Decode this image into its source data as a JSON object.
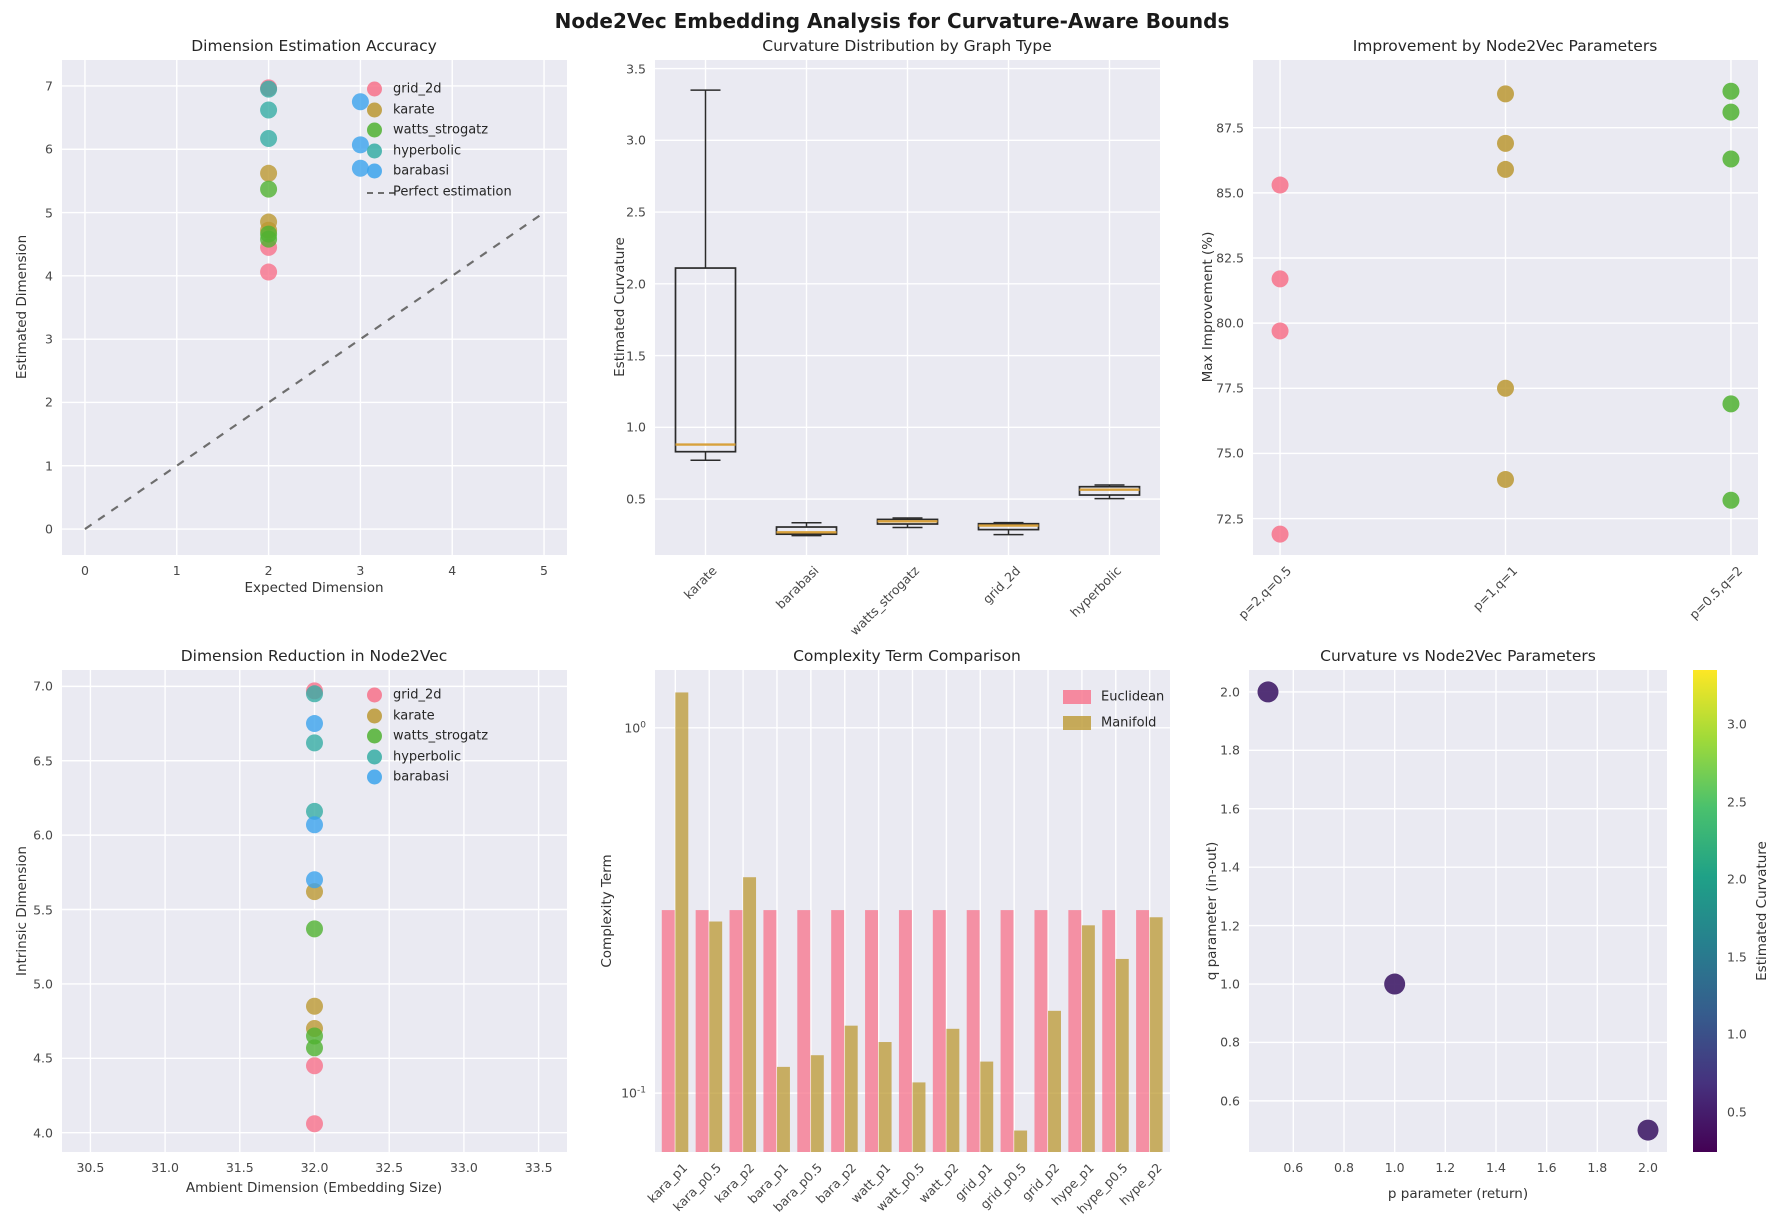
{
  "figure_title": "Node2Vec Embedding Analysis for Curvature-Aware Bounds",
  "palette": {
    "grid_2d": "#f77189",
    "karate": "#bb9832",
    "watts_strogatz": "#50b131",
    "hyperbolic": "#36ada4",
    "barabasi": "#3ba3ec",
    "euclidean": "#f77189",
    "manifold": "#bb9832",
    "median_line": "#d8a13c",
    "ref_line": "#6e6e6e",
    "box_edge": "#2b2b2b",
    "axes_bg": "#eaeaf2",
    "grid_line": "#ffffff",
    "dark_point": "#44226b"
  },
  "chart_data": [
    {
      "id": "dim-estimation-accuracy",
      "type": "scatter",
      "title": "Dimension Estimation Accuracy",
      "xlabel": "Expected Dimension",
      "ylabel": "Estimated Dimension",
      "xlim": [
        -0.25,
        5.25
      ],
      "ylim": [
        -0.41,
        7.41
      ],
      "xticks": [
        0,
        1,
        2,
        3,
        4,
        5
      ],
      "yticks": [
        0,
        1,
        2,
        3,
        4,
        5,
        6,
        7
      ],
      "xtick_decimals": 0,
      "ytick_decimals": 0,
      "series": [
        {
          "name": "grid_2d",
          "color_key": "grid_2d",
          "points": [
            [
              2,
              6.97
            ],
            [
              2,
              4.45
            ],
            [
              2,
              4.06
            ]
          ]
        },
        {
          "name": "karate",
          "color_key": "karate",
          "points": [
            [
              2,
              5.62
            ],
            [
              2,
              4.85
            ],
            [
              2,
              4.72
            ]
          ]
        },
        {
          "name": "watts_strogatz",
          "color_key": "watts_strogatz",
          "points": [
            [
              2,
              5.37
            ],
            [
              2,
              4.66
            ],
            [
              2,
              4.58
            ]
          ]
        },
        {
          "name": "hyperbolic",
          "color_key": "hyperbolic",
          "points": [
            [
              2,
              6.95
            ],
            [
              2,
              6.62
            ],
            [
              2,
              6.17
            ]
          ]
        },
        {
          "name": "barabasi",
          "color_key": "barabasi",
          "points": [
            [
              3,
              6.75
            ],
            [
              3,
              6.07
            ],
            [
              3,
              5.7
            ]
          ]
        }
      ],
      "ref_line": {
        "label": "Perfect estimation",
        "x1": 0,
        "y1": 0,
        "x2": 5,
        "y2": 5
      },
      "legend": true
    },
    {
      "id": "curvature-distribution",
      "type": "box",
      "title": "Curvature Distribution by Graph Type",
      "xlabel": "",
      "ylabel": "Estimated Curvature",
      "ylim": [
        0.11,
        3.56
      ],
      "yticks": [
        0.5,
        1.0,
        1.5,
        2.0,
        2.5,
        3.0,
        3.5
      ],
      "ytick_decimals": 1,
      "categories": [
        "karate",
        "barabasi",
        "watts_strogatz",
        "grid_2d",
        "hyperbolic"
      ],
      "boxes": [
        {
          "label": "karate",
          "whislo": 0.77,
          "q1": 0.83,
          "med": 0.88,
          "q3": 2.11,
          "whishi": 3.35
        },
        {
          "label": "barabasi",
          "whislo": 0.245,
          "q1": 0.255,
          "med": 0.268,
          "q3": 0.305,
          "whishi": 0.335
        },
        {
          "label": "watts_strogatz",
          "whislo": 0.302,
          "q1": 0.326,
          "med": 0.345,
          "q3": 0.358,
          "whishi": 0.368
        },
        {
          "label": "grid_2d",
          "whislo": 0.252,
          "q1": 0.287,
          "med": 0.315,
          "q3": 0.328,
          "whishi": 0.336
        },
        {
          "label": "hyperbolic",
          "whislo": 0.503,
          "q1": 0.528,
          "med": 0.565,
          "q3": 0.586,
          "whishi": 0.598
        }
      ]
    },
    {
      "id": "improvement-by-params",
      "type": "cat-scatter",
      "title": "Improvement by Node2Vec Parameters",
      "xlabel": "",
      "ylabel": "Max Improvement (%)",
      "categories": [
        "p=2,q=0.5",
        "p=1,q=1",
        "p=0.5,q=2"
      ],
      "xlim": [
        -0.12,
        2.12
      ],
      "ylim": [
        71.1,
        90.1
      ],
      "yticks": [
        72.5,
        75.0,
        77.5,
        80.0,
        82.5,
        85.0,
        87.5
      ],
      "ytick_decimals": 1,
      "series": [
        {
          "name": "p=2,q=0.5",
          "color_key": "grid_2d",
          "values": [
            85.3,
            81.7,
            79.7,
            71.9
          ]
        },
        {
          "name": "p=1,q=1",
          "color_key": "karate",
          "values": [
            88.8,
            86.9,
            85.9,
            77.5,
            74.0
          ]
        },
        {
          "name": "p=0.5,q=2",
          "color_key": "watts_strogatz",
          "values": [
            88.9,
            88.1,
            86.3,
            76.9,
            73.2
          ]
        }
      ]
    },
    {
      "id": "dimension-reduction",
      "type": "scatter",
      "title": "Dimension Reduction in Node2Vec",
      "xlabel": "Ambient Dimension (Embedding Size)",
      "ylabel": "Intrinsic Dimension",
      "xlim": [
        30.31,
        33.69
      ],
      "ylim": [
        3.87,
        7.11
      ],
      "xticks": [
        30.5,
        31.0,
        31.5,
        32.0,
        32.5,
        33.0,
        33.5
      ],
      "yticks": [
        4.0,
        4.5,
        5.0,
        5.5,
        6.0,
        6.5,
        7.0
      ],
      "xtick_decimals": 1,
      "ytick_decimals": 1,
      "series": [
        {
          "name": "grid_2d",
          "color_key": "grid_2d",
          "points": [
            [
              32,
              6.97
            ],
            [
              32,
              4.45
            ],
            [
              32,
              4.06
            ]
          ]
        },
        {
          "name": "karate",
          "color_key": "karate",
          "points": [
            [
              32,
              5.62
            ],
            [
              32,
              4.85
            ],
            [
              32,
              4.7
            ]
          ]
        },
        {
          "name": "watts_strogatz",
          "color_key": "watts_strogatz",
          "points": [
            [
              32,
              5.37
            ],
            [
              32,
              4.65
            ],
            [
              32,
              4.57
            ]
          ]
        },
        {
          "name": "hyperbolic",
          "color_key": "hyperbolic",
          "points": [
            [
              32,
              6.95
            ],
            [
              32,
              6.62
            ],
            [
              32,
              6.16
            ]
          ]
        },
        {
          "name": "barabasi",
          "color_key": "barabasi",
          "points": [
            [
              32,
              6.75
            ],
            [
              32,
              6.07
            ],
            [
              32,
              5.7
            ]
          ]
        }
      ],
      "legend": true
    },
    {
      "id": "complexity-comparison",
      "type": "bar-log",
      "title": "Complexity Term Comparison",
      "xlabel": "",
      "ylabel": "Complexity Term",
      "categories": [
        "kara_p1",
        "kara_p0.5",
        "kara_p2",
        "bara_p1",
        "bara_p0.5",
        "bara_p2",
        "watt_p1",
        "watt_p0.5",
        "watt_p2",
        "grid_p1",
        "grid_p0.5",
        "grid_p2",
        "hype_p1",
        "hype_p0.5",
        "hype_p2"
      ],
      "ylim": [
        0.069,
        1.44
      ],
      "log_ticks": [
        {
          "value": 1,
          "base": "10",
          "exp": "0"
        },
        {
          "value": 0.1,
          "base": "10",
          "exp": "-1"
        }
      ],
      "series": [
        {
          "name": "Euclidean",
          "color_key": "euclidean",
          "values": [
            0.317,
            0.317,
            0.317,
            0.317,
            0.317,
            0.317,
            0.317,
            0.317,
            0.317,
            0.317,
            0.317,
            0.317,
            0.317,
            0.317,
            0.317
          ]
        },
        {
          "name": "Manifold",
          "color_key": "manifold",
          "values": [
            1.25,
            0.295,
            0.39,
            0.118,
            0.127,
            0.153,
            0.138,
            0.107,
            0.15,
            0.122,
            0.079,
            0.168,
            0.288,
            0.233,
            0.303
          ]
        }
      ],
      "legend": true
    },
    {
      "id": "curvature-vs-params",
      "type": "scatter-color",
      "title": "Curvature vs Node2Vec Parameters",
      "xlabel": "p parameter (return)",
      "ylabel": "q parameter (in-out)",
      "xlim": [
        0.425,
        2.075
      ],
      "ylim": [
        0.425,
        2.075
      ],
      "xticks": [
        0.6,
        0.8,
        1.0,
        1.2,
        1.4,
        1.6,
        1.8,
        2.0
      ],
      "yticks": [
        0.6,
        0.8,
        1.0,
        1.2,
        1.4,
        1.6,
        1.8,
        2.0
      ],
      "xtick_decimals": 1,
      "ytick_decimals": 1,
      "points": [
        [
          0.5,
          2.0
        ],
        [
          1.0,
          1.0
        ],
        [
          2.0,
          0.5
        ]
      ],
      "point_color": "#44226b",
      "colorbar": {
        "label": "Estimated Curvature",
        "ticks": [
          0.5,
          1.0,
          1.5,
          2.0,
          2.5,
          3.0
        ],
        "tick_decimals": 1,
        "range": [
          0.24,
          3.35
        ],
        "gradient": [
          "#440154",
          "#46327e",
          "#365c8d",
          "#277f8e",
          "#1fa187",
          "#4ac16d",
          "#a0da39",
          "#fde725"
        ]
      }
    }
  ]
}
